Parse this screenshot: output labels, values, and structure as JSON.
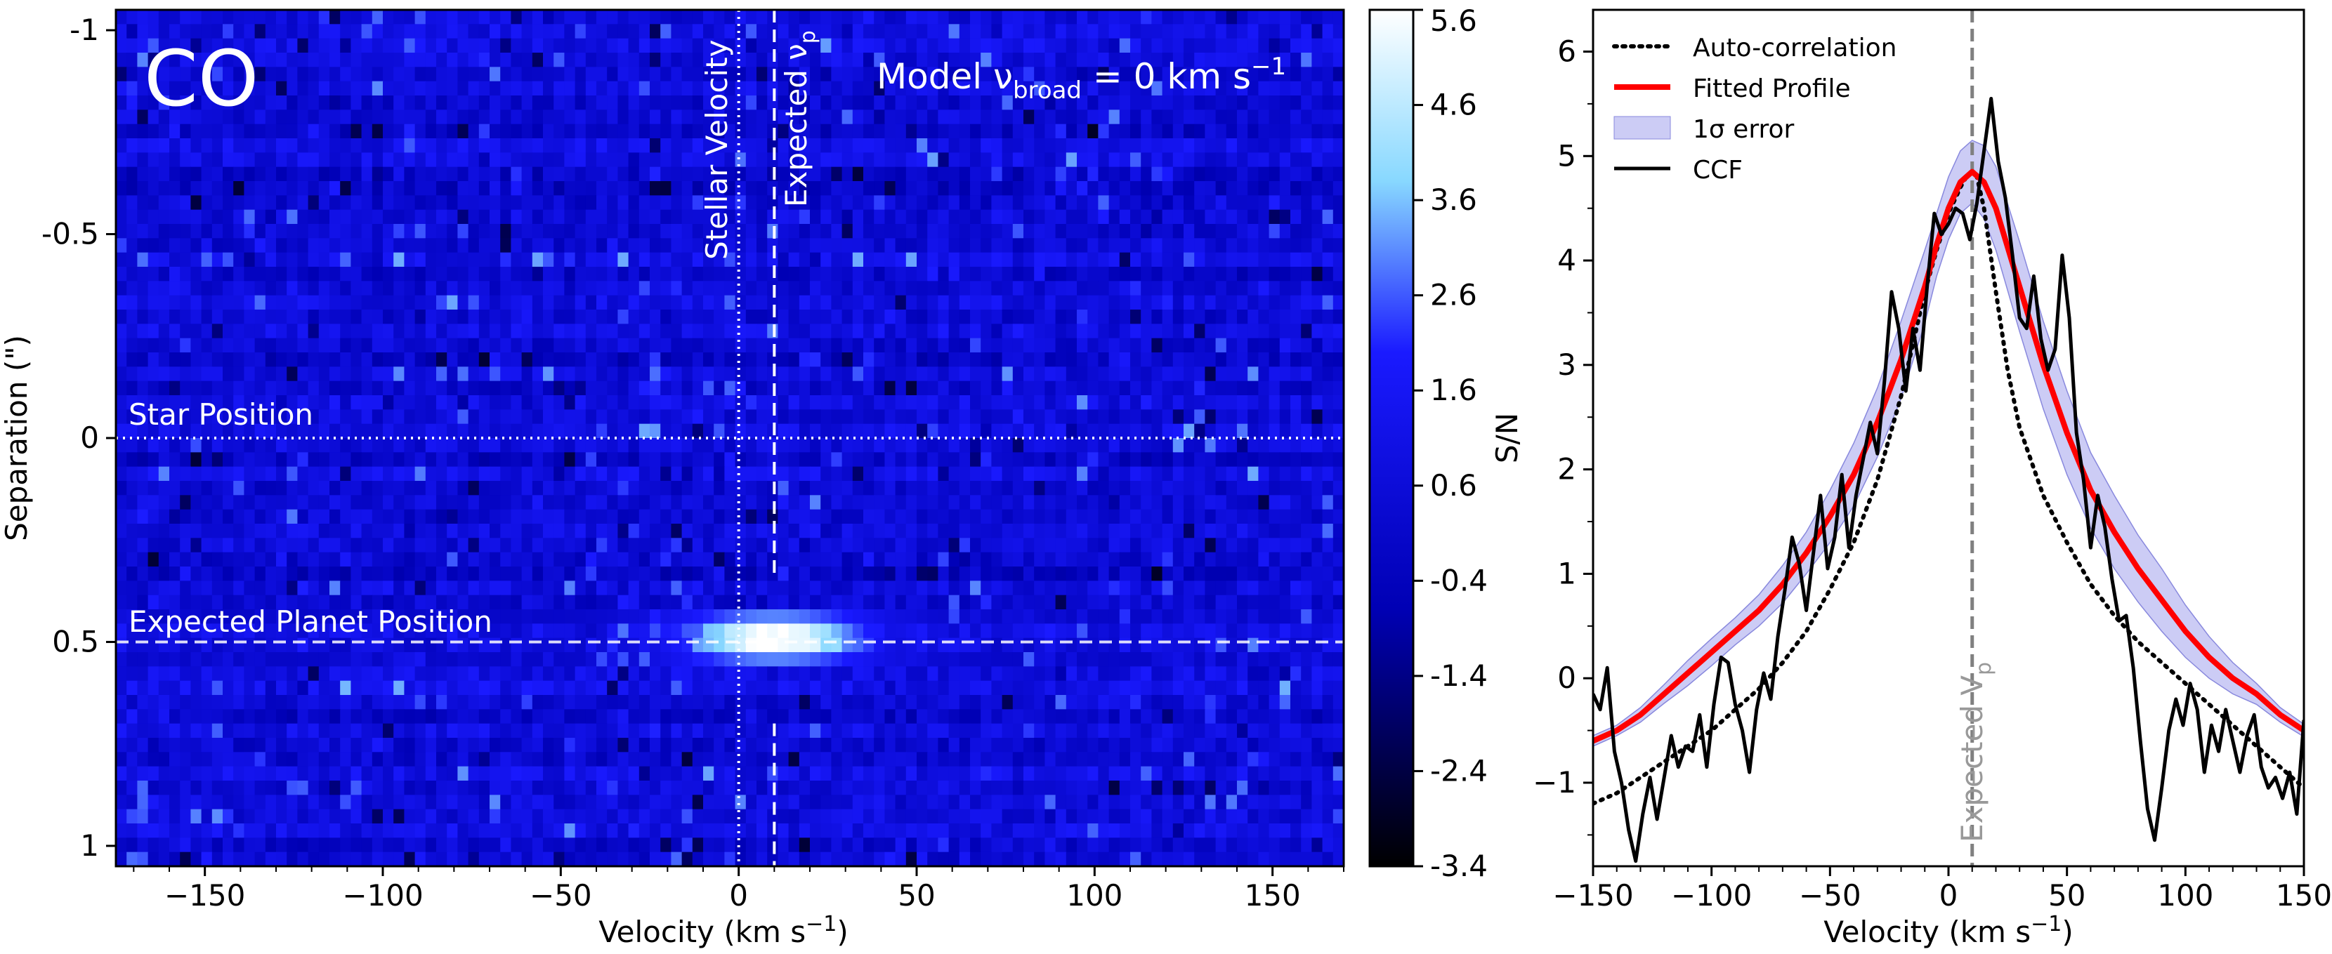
{
  "chart_data": [
    {
      "type": "heatmap",
      "panel_label": "CO",
      "model_text": "Model ν",
      "model_subscript": "broad",
      "model_value_text": " = 0 km s",
      "model_unit_exp": "−1",
      "xlabel": "Velocity (km s",
      "xlabel_exp": "−1",
      "xlabel_close": ")",
      "ylabel": "Separation (\")",
      "xlim": [
        -175,
        170
      ],
      "ylim": [
        -1.05,
        1.05
      ],
      "y_inverted": true,
      "x_ticks": [
        -150,
        -100,
        -50,
        0,
        50,
        100,
        150
      ],
      "x_tick_labels": [
        "−150",
        "−100",
        "−50",
        "0",
        "50",
        "100",
        "150"
      ],
      "y_ticks": [
        -1,
        -0.5,
        0,
        0.5,
        1
      ],
      "y_tick_labels": [
        "-1",
        "-0.5",
        "0",
        "0.5",
        "1"
      ],
      "stellar_velocity": 0,
      "expected_vp": 10,
      "star_position": 0,
      "expected_planet_position": 0.5,
      "annotations": {
        "stellar_velocity": "Stellar Velocity",
        "expected_vp": "Expected ν",
        "expected_vp_sub": "p",
        "star_position": "Star Position",
        "planet_position": "Expected Planet Position"
      },
      "peak_sn": 5.6,
      "colorbar": {
        "label": "S/N",
        "vmin": -3.4,
        "vmax": 5.6,
        "ticks": [
          5.6,
          4.6,
          3.6,
          2.6,
          1.6,
          0.6,
          -0.4,
          -1.4,
          -2.4,
          -3.4
        ],
        "tick_labels": [
          "5.6",
          "4.6",
          "3.6",
          "2.6",
          "1.6",
          "0.6",
          "-0.4",
          "-1.4",
          "-2.4",
          "-3.4"
        ],
        "colors": [
          "#000000",
          "#0000b4",
          "#1a1aff",
          "#88d8ff",
          "#ffffff"
        ]
      }
    },
    {
      "type": "line",
      "xlabel": "Velocity (km s",
      "xlabel_exp": "−1",
      "xlabel_close": ")",
      "xlim": [
        -150,
        150
      ],
      "ylim": [
        -1.8,
        6.4
      ],
      "x_ticks": [
        -150,
        -100,
        -50,
        0,
        50,
        100,
        150
      ],
      "x_tick_labels": [
        "−150",
        "−100",
        "−50",
        "0",
        "50",
        "100",
        "150"
      ],
      "y_ticks": [
        -1,
        0,
        1,
        2,
        3,
        4,
        5,
        6
      ],
      "y_tick_labels": [
        "−1",
        "0",
        "1",
        "2",
        "3",
        "4",
        "5",
        "6"
      ],
      "expected_vp": 10,
      "expected_vp_label": "Expected V",
      "expected_vp_sub": "p",
      "legend_position": "top-left",
      "series": [
        {
          "name": "Auto-correlation",
          "color": "#000000",
          "style": "dotted",
          "x": [
            -150,
            -140,
            -130,
            -120,
            -110,
            -100,
            -90,
            -80,
            -70,
            -60,
            -50,
            -40,
            -30,
            -20,
            -15,
            -10,
            -5,
            0,
            5,
            8,
            10,
            12,
            15,
            20,
            25,
            30,
            40,
            50,
            60,
            70,
            80,
            90,
            100,
            110,
            120,
            130,
            140,
            150
          ],
          "y": [
            -1.2,
            -1.1,
            -0.95,
            -0.8,
            -0.65,
            -0.5,
            -0.3,
            -0.1,
            0.15,
            0.45,
            0.85,
            1.3,
            1.9,
            2.7,
            3.2,
            3.7,
            4.1,
            4.45,
            4.7,
            4.82,
            4.85,
            4.8,
            4.5,
            3.7,
            2.95,
            2.4,
            1.75,
            1.3,
            0.9,
            0.6,
            0.35,
            0.15,
            -0.05,
            -0.25,
            -0.45,
            -0.65,
            -0.85,
            -1.05
          ]
        },
        {
          "name": "Fitted Profile",
          "color": "#ff0000",
          "style": "solid",
          "x": [
            -150,
            -140,
            -130,
            -120,
            -110,
            -100,
            -90,
            -80,
            -70,
            -60,
            -50,
            -40,
            -30,
            -20,
            -10,
            -5,
            0,
            5,
            10,
            15,
            20,
            30,
            40,
            50,
            60,
            70,
            80,
            90,
            100,
            110,
            120,
            130,
            140,
            150
          ],
          "y": [
            -0.6,
            -0.5,
            -0.35,
            -0.15,
            0.05,
            0.25,
            0.45,
            0.65,
            0.9,
            1.2,
            1.55,
            1.95,
            2.45,
            3.05,
            3.75,
            4.15,
            4.5,
            4.75,
            4.85,
            4.75,
            4.5,
            3.75,
            3.0,
            2.35,
            1.8,
            1.4,
            1.05,
            0.75,
            0.45,
            0.2,
            0.0,
            -0.15,
            -0.35,
            -0.5
          ]
        },
        {
          "name": "1σ error",
          "color": "#aaaaee",
          "style": "band",
          "x": [
            -150,
            -140,
            -130,
            -120,
            -110,
            -100,
            -90,
            -80,
            -70,
            -60,
            -50,
            -40,
            -30,
            -20,
            -10,
            -5,
            0,
            5,
            10,
            15,
            20,
            30,
            40,
            50,
            60,
            70,
            80,
            90,
            100,
            110,
            120,
            130,
            140,
            150
          ],
          "y_lower": [
            -0.65,
            -0.55,
            -0.42,
            -0.24,
            -0.07,
            0.12,
            0.32,
            0.5,
            0.72,
            1.0,
            1.3,
            1.65,
            2.12,
            2.68,
            3.4,
            3.85,
            4.2,
            4.45,
            4.55,
            4.4,
            4.1,
            3.32,
            2.58,
            1.95,
            1.44,
            1.05,
            0.73,
            0.45,
            0.2,
            0.0,
            -0.15,
            -0.25,
            -0.42,
            -0.56
          ],
          "y_upper": [
            -0.55,
            -0.45,
            -0.28,
            -0.06,
            0.17,
            0.38,
            0.58,
            0.8,
            1.08,
            1.4,
            1.8,
            2.25,
            2.78,
            3.42,
            4.1,
            4.45,
            4.8,
            5.05,
            5.15,
            5.1,
            4.9,
            4.18,
            3.42,
            2.75,
            2.16,
            1.75,
            1.37,
            1.05,
            0.7,
            0.4,
            0.15,
            -0.05,
            -0.28,
            -0.44
          ]
        },
        {
          "name": "CCF",
          "color": "#000000",
          "style": "solid",
          "x": [
            -150,
            -147,
            -144,
            -141,
            -138,
            -135,
            -132,
            -129,
            -126,
            -123,
            -120,
            -117,
            -114,
            -111,
            -108,
            -105,
            -102,
            -99,
            -96,
            -93,
            -90,
            -87,
            -84,
            -81,
            -78,
            -75,
            -72,
            -69,
            -66,
            -63,
            -60,
            -57,
            -54,
            -51,
            -48,
            -45,
            -42,
            -39,
            -36,
            -33,
            -30,
            -27,
            -24,
            -21,
            -18,
            -15,
            -12,
            -9,
            -6,
            -3,
            0,
            3,
            6,
            9,
            12,
            15,
            18,
            21,
            24,
            27,
            30,
            33,
            36,
            39,
            42,
            45,
            48,
            51,
            54,
            57,
            60,
            63,
            66,
            69,
            72,
            75,
            78,
            81,
            84,
            87,
            90,
            93,
            96,
            99,
            102,
            105,
            108,
            111,
            114,
            117,
            120,
            123,
            126,
            129,
            132,
            135,
            138,
            141,
            144,
            147,
            150
          ],
          "y": [
            -0.15,
            -0.3,
            0.1,
            -0.7,
            -1.0,
            -1.45,
            -1.75,
            -1.3,
            -0.95,
            -1.35,
            -0.95,
            -0.55,
            -0.85,
            -0.65,
            -0.7,
            -0.35,
            -0.85,
            -0.25,
            0.2,
            0.15,
            -0.25,
            -0.5,
            -0.9,
            -0.3,
            0.05,
            -0.2,
            0.4,
            0.85,
            1.35,
            1.1,
            0.65,
            1.2,
            1.75,
            1.05,
            1.35,
            1.95,
            1.25,
            1.75,
            2.1,
            2.45,
            2.15,
            2.85,
            3.7,
            3.35,
            2.75,
            3.35,
            2.95,
            3.75,
            4.45,
            4.25,
            4.35,
            4.5,
            4.45,
            4.2,
            4.55,
            5.05,
            5.55,
            4.95,
            4.6,
            4.05,
            3.45,
            3.35,
            3.85,
            3.25,
            2.95,
            3.15,
            4.05,
            3.45,
            2.35,
            1.9,
            1.25,
            1.75,
            1.45,
            0.95,
            0.55,
            0.6,
            0.1,
            -0.6,
            -1.25,
            -1.55,
            -1.05,
            -0.5,
            -0.2,
            -0.45,
            -0.05,
            -0.3,
            -0.9,
            -0.45,
            -0.7,
            -0.3,
            -0.6,
            -0.9,
            -0.55,
            -0.35,
            -0.85,
            -1.05,
            -0.95,
            -1.15,
            -0.9,
            -1.3,
            -0.4
          ]
        }
      ]
    }
  ]
}
